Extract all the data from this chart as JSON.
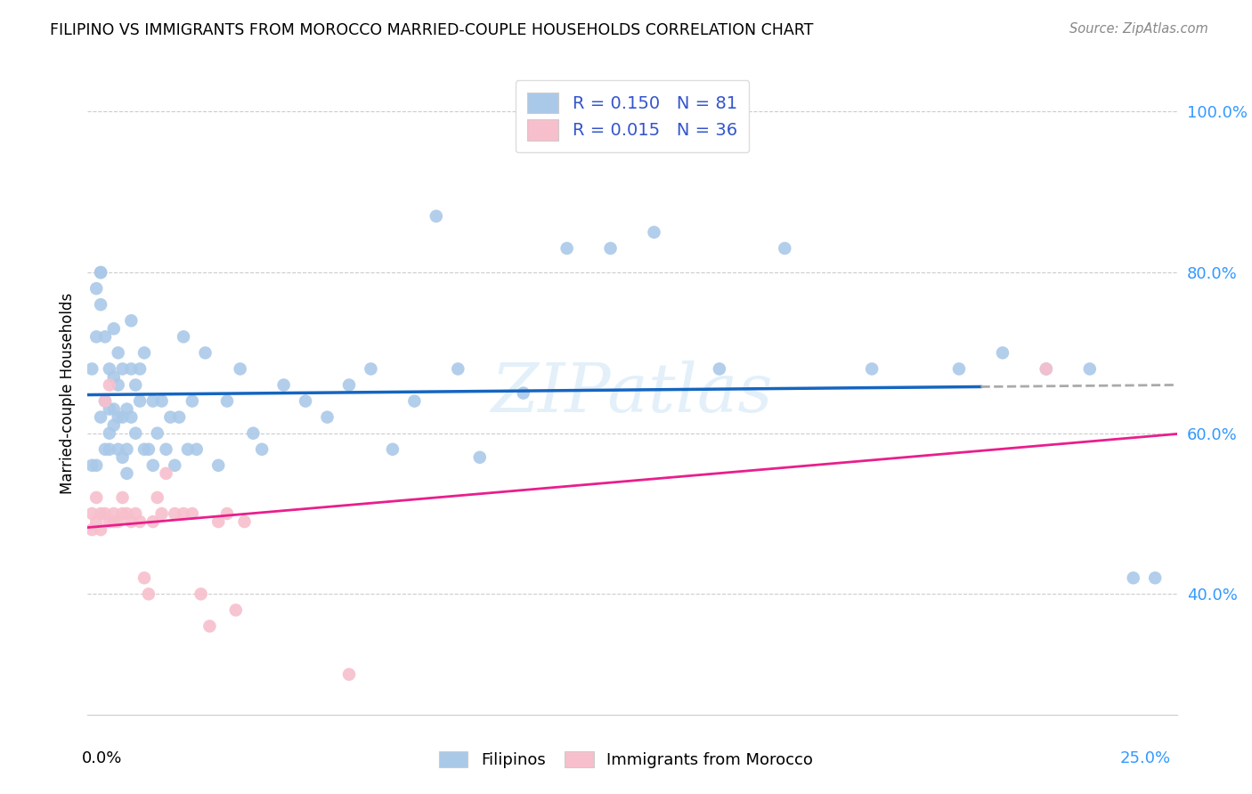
{
  "title": "FILIPINO VS IMMIGRANTS FROM MOROCCO MARRIED-COUPLE HOUSEHOLDS CORRELATION CHART",
  "source": "Source: ZipAtlas.com",
  "ylabel": "Married-couple Households",
  "xlim": [
    0.0,
    0.25
  ],
  "ylim": [
    0.25,
    1.05
  ],
  "yticks": [
    0.4,
    0.6,
    0.8,
    1.0
  ],
  "ytick_labels": [
    "40.0%",
    "60.0%",
    "80.0%",
    "100.0%"
  ],
  "watermark": "ZIPatlas",
  "legend1_R": "0.150",
  "legend1_N": "81",
  "legend2_R": "0.015",
  "legend2_N": "36",
  "color_blue": "#aac9e8",
  "color_pink": "#f7bfcc",
  "color_blue_line": "#1565c0",
  "color_pink_line": "#e91e8c",
  "color_dashed": "#aaaaaa",
  "filipinos_x": [
    0.001,
    0.001,
    0.002,
    0.002,
    0.002,
    0.003,
    0.003,
    0.003,
    0.003,
    0.004,
    0.004,
    0.004,
    0.005,
    0.005,
    0.005,
    0.005,
    0.006,
    0.006,
    0.006,
    0.006,
    0.007,
    0.007,
    0.007,
    0.007,
    0.008,
    0.008,
    0.008,
    0.009,
    0.009,
    0.009,
    0.01,
    0.01,
    0.01,
    0.011,
    0.011,
    0.012,
    0.012,
    0.013,
    0.013,
    0.014,
    0.015,
    0.015,
    0.016,
    0.017,
    0.018,
    0.019,
    0.02,
    0.021,
    0.022,
    0.023,
    0.024,
    0.025,
    0.027,
    0.03,
    0.032,
    0.035,
    0.038,
    0.04,
    0.045,
    0.05,
    0.055,
    0.06,
    0.065,
    0.07,
    0.075,
    0.08,
    0.085,
    0.09,
    0.1,
    0.11,
    0.12,
    0.13,
    0.145,
    0.16,
    0.18,
    0.2,
    0.21,
    0.22,
    0.23,
    0.24,
    0.245
  ],
  "filipinos_y": [
    0.56,
    0.68,
    0.72,
    0.78,
    0.56,
    0.8,
    0.8,
    0.76,
    0.62,
    0.58,
    0.72,
    0.64,
    0.58,
    0.63,
    0.68,
    0.6,
    0.61,
    0.63,
    0.67,
    0.73,
    0.58,
    0.62,
    0.66,
    0.7,
    0.57,
    0.62,
    0.68,
    0.58,
    0.63,
    0.55,
    0.62,
    0.68,
    0.74,
    0.6,
    0.66,
    0.64,
    0.68,
    0.58,
    0.7,
    0.58,
    0.56,
    0.64,
    0.6,
    0.64,
    0.58,
    0.62,
    0.56,
    0.62,
    0.72,
    0.58,
    0.64,
    0.58,
    0.7,
    0.56,
    0.64,
    0.68,
    0.6,
    0.58,
    0.66,
    0.64,
    0.62,
    0.66,
    0.68,
    0.58,
    0.64,
    0.87,
    0.68,
    0.57,
    0.65,
    0.83,
    0.83,
    0.85,
    0.68,
    0.83,
    0.68,
    0.68,
    0.7,
    0.68,
    0.68,
    0.42,
    0.42
  ],
  "morocco_x": [
    0.001,
    0.001,
    0.002,
    0.002,
    0.003,
    0.003,
    0.004,
    0.004,
    0.005,
    0.005,
    0.006,
    0.006,
    0.007,
    0.008,
    0.008,
    0.009,
    0.01,
    0.011,
    0.012,
    0.013,
    0.014,
    0.015,
    0.016,
    0.017,
    0.018,
    0.02,
    0.022,
    0.024,
    0.026,
    0.028,
    0.03,
    0.032,
    0.034,
    0.036,
    0.06,
    0.22
  ],
  "morocco_y": [
    0.48,
    0.5,
    0.49,
    0.52,
    0.5,
    0.48,
    0.5,
    0.64,
    0.49,
    0.66,
    0.49,
    0.5,
    0.49,
    0.5,
    0.52,
    0.5,
    0.49,
    0.5,
    0.49,
    0.42,
    0.4,
    0.49,
    0.52,
    0.5,
    0.55,
    0.5,
    0.5,
    0.5,
    0.4,
    0.36,
    0.49,
    0.5,
    0.38,
    0.49,
    0.3,
    0.68
  ]
}
